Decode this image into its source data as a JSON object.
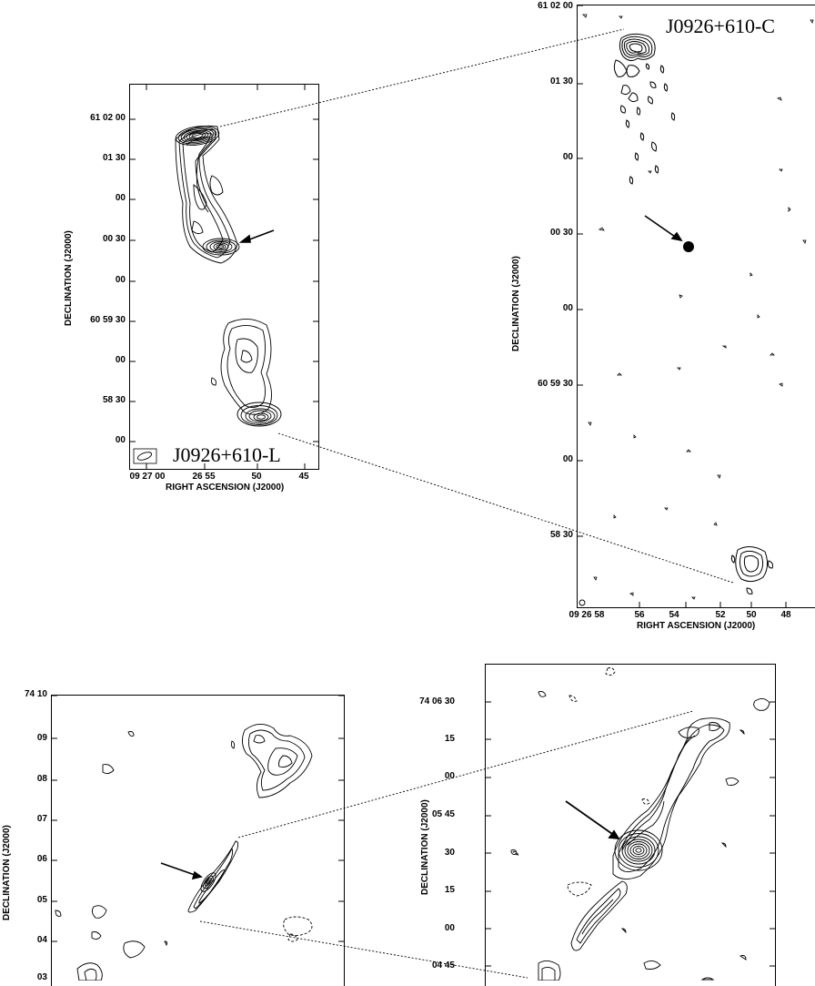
{
  "top_left": {
    "source_label": "J0926+610-L",
    "ylabel": "DECLINATION (J2000)",
    "xlabel": "RIGHT ASCENSION (J2000)",
    "yticks": [
      "61 02 00",
      "01 30",
      "00",
      "00 30",
      "00",
      "60 59 30",
      "00",
      "58 30",
      "00"
    ],
    "xticks": [
      "09 27 00",
      "26 55",
      "50",
      "45"
    ]
  },
  "top_right": {
    "source_label": "J0926+610-C",
    "ylabel": "DECLINATION (J2000)",
    "xlabel": "RIGHT ASCENSION (J2000)",
    "yticks": [
      "61 02 00",
      "01 30",
      "00",
      "00 30",
      "00",
      "60 59 30",
      "00",
      "58 30"
    ],
    "xticks": [
      "09 26 58",
      "56",
      "54",
      "52",
      "50",
      "48"
    ]
  },
  "bottom_left": {
    "ylabel": "DECLINATION (J2000)",
    "yticks": [
      "74 10",
      "09",
      "08",
      "07",
      "06",
      "05",
      "04",
      "03"
    ]
  },
  "bottom_right": {
    "ylabel": "DECLINATION (J2000)",
    "yticks": [
      "74 06 30",
      "15",
      "00",
      "05 45",
      "30",
      "15",
      "00",
      "04 45"
    ]
  }
}
